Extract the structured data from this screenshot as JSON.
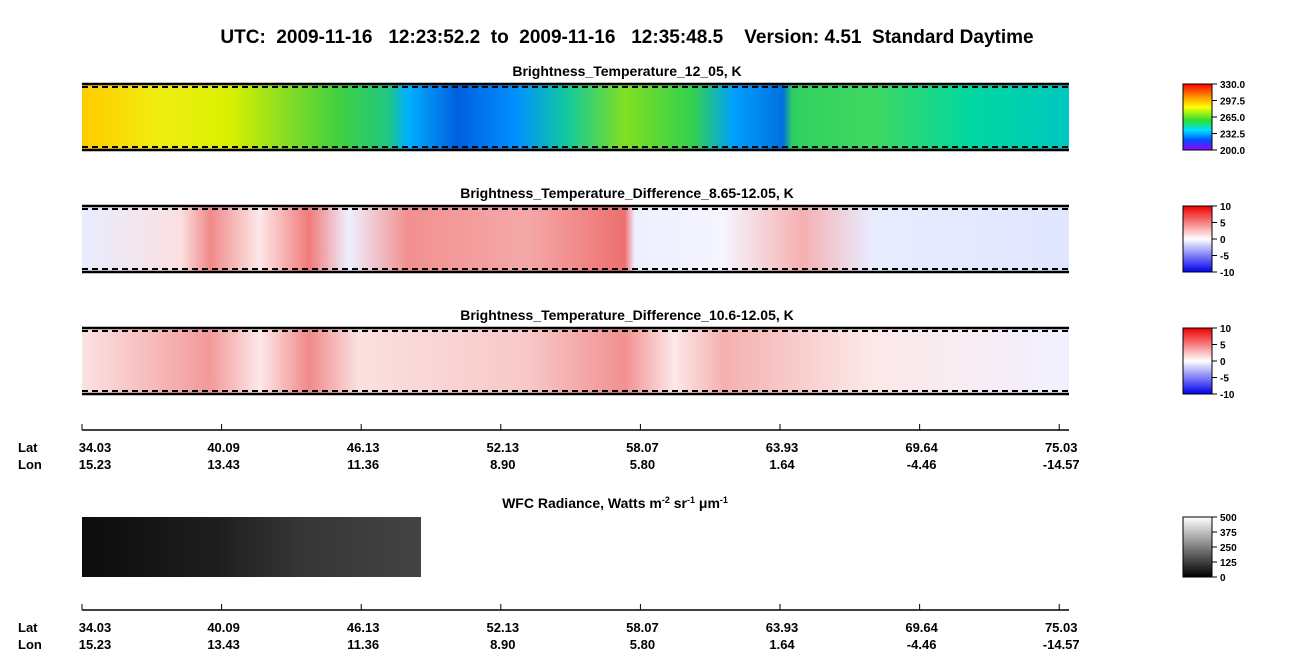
{
  "header": {
    "title": "UTC:  2009-11-16   12:23:52.2  to  2009-11-16   12:35:48.5    Version: 4.51  Standard Daytime"
  },
  "panels": [
    {
      "title": "Brightness_Temperature_12_05, K",
      "colorbar": [
        "330.0",
        "297.5",
        "265.0",
        "232.5",
        "200.0"
      ]
    },
    {
      "title": "Brightness_Temperature_Difference_8.65-12.05, K",
      "colorbar": [
        "10",
        "5",
        "0",
        "-5",
        "-10"
      ]
    },
    {
      "title": "Brightness_Temperature_Difference_10.6-12.05, K",
      "colorbar": [
        "10",
        "5",
        "0",
        "-5",
        "-10"
      ]
    }
  ],
  "axes": [
    {
      "lat_label": "Lat",
      "lon_label": "Lon",
      "lat": [
        "34.03",
        "40.09",
        "46.13",
        "52.13",
        "58.07",
        "63.93",
        "69.64",
        "75.03"
      ],
      "lon": [
        "15.23",
        "13.43",
        "11.36",
        "8.90",
        "5.80",
        "1.64",
        "-4.46",
        "-14.57"
      ]
    },
    {
      "lat_label": "Lat",
      "lon_label": "Lon",
      "lat": [
        "34.03",
        "40.09",
        "46.13",
        "52.13",
        "58.07",
        "63.93",
        "69.64",
        "75.03"
      ],
      "lon": [
        "15.23",
        "13.43",
        "11.36",
        "8.90",
        "5.80",
        "1.64",
        "-4.46",
        "-14.57"
      ]
    }
  ],
  "wfc": {
    "title_parts": [
      "WFC Radiance, Watts m",
      "-2",
      " sr",
      "-1",
      " μm",
      "-1"
    ],
    "colorbar": [
      "500",
      "375",
      "250",
      "125",
      "0"
    ]
  }
}
